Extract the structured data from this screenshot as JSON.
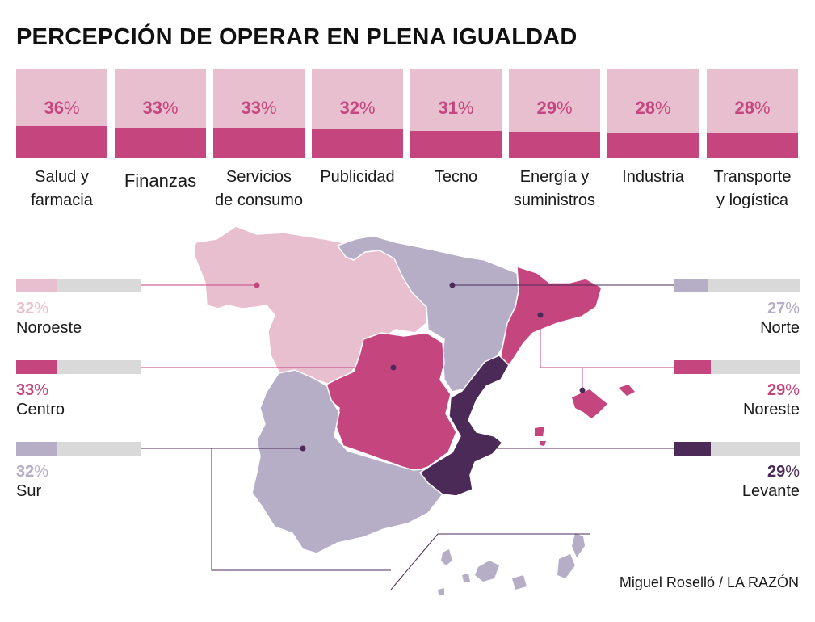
{
  "title": "PERCEPCIÓN DE OPERAR EN PLENA IGUALDAD",
  "credit": "Miguel Roselló / LA RAZÓN",
  "colors": {
    "light_pink": "#e8bfcf",
    "magenta": "#c5467e",
    "lavender": "#b6adc7",
    "dark_purple": "#4b2a57",
    "bar_bg": "#d9d9d9"
  },
  "chart_data": [
    {
      "type": "bar",
      "categories": [
        "Salud y farmacia",
        "Finanzas",
        "Servicios de consumo",
        "Publicidad",
        "Tecno",
        "Energía y suministros",
        "Industria",
        "Transporte y logística"
      ],
      "values": [
        36,
        33,
        33,
        32,
        31,
        29,
        28,
        28
      ],
      "value_labels": [
        "36%",
        "33%",
        "33%",
        "32%",
        "31%",
        "29%",
        "28%",
        "28%"
      ],
      "ylim": [
        0,
        100
      ]
    },
    {
      "type": "bar",
      "categories": [
        "Noroeste",
        "Centro",
        "Sur",
        "Norte",
        "Noreste",
        "Levante"
      ],
      "values": [
        32,
        33,
        32,
        27,
        29,
        29
      ],
      "value_labels": [
        "32%",
        "33%",
        "32%",
        "27%",
        "29%",
        "29%"
      ],
      "ylim": [
        0,
        100
      ]
    }
  ],
  "sectors": [
    {
      "pct": "36",
      "label": "Salud y\nfarmacia"
    },
    {
      "pct": "33",
      "label": "Finanzas"
    },
    {
      "pct": "33",
      "label": "Servicios\nde consumo"
    },
    {
      "pct": "32",
      "label": "Publicidad"
    },
    {
      "pct": "31",
      "label": "Tecno"
    },
    {
      "pct": "29",
      "label": "Energía y\nsuministros"
    },
    {
      "pct": "28",
      "label": "Industria"
    },
    {
      "pct": "28",
      "label": "Transporte\ny logística"
    }
  ],
  "regions": {
    "noroeste": {
      "pct": "32",
      "name": "Noroeste",
      "color": "#e8bfcf"
    },
    "centro": {
      "pct": "33",
      "name": "Centro",
      "color": "#c5467e"
    },
    "sur": {
      "pct": "32",
      "name": "Sur",
      "color": "#b6adc7"
    },
    "norte": {
      "pct": "27",
      "name": "Norte",
      "color": "#b6adc7"
    },
    "noreste": {
      "pct": "29",
      "name": "Noreste",
      "color": "#c5467e"
    },
    "levante": {
      "pct": "29",
      "name": "Levante",
      "color": "#4b2a57"
    }
  }
}
